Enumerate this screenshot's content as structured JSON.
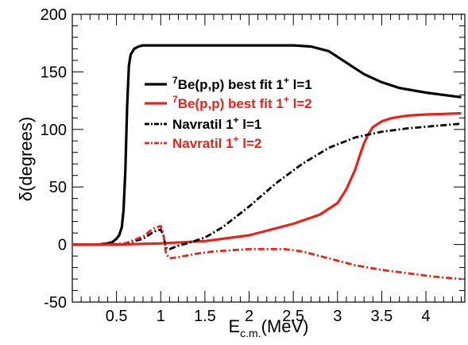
{
  "chart_data": {
    "type": "line",
    "xlabel_main": "E",
    "xlabel_sub": "c.m.",
    "xlabel_unit": "(MeV)",
    "ylabel": "δ(degrees)",
    "xlim": [
      0,
      4.44
    ],
    "ylim": [
      -50,
      200
    ],
    "xticks": [
      0.5,
      1,
      1.5,
      2,
      2.5,
      3,
      3.5,
      4
    ],
    "yticks": [
      -50,
      0,
      50,
      100,
      150,
      200
    ],
    "legend_position": "top-right",
    "series": [
      {
        "name": "7Be(p,p) best fit 1+ l=1",
        "legend": {
          "sup1": "7",
          "main": "Be(p,p) best fit 1",
          "sup2": "+",
          "tail": " l=1"
        },
        "color": "#000000",
        "style": "solid",
        "x": [
          0.0,
          0.3,
          0.4,
          0.45,
          0.5,
          0.53,
          0.56,
          0.58,
          0.6,
          0.62,
          0.64,
          0.66,
          0.7,
          0.75,
          0.8,
          0.9,
          1.0,
          1.5,
          2.0,
          2.5,
          2.7,
          2.9,
          3.1,
          3.3,
          3.5,
          3.7,
          4.0,
          4.2,
          4.4
        ],
        "y": [
          0,
          0,
          1,
          2,
          5,
          8,
          15,
          30,
          65,
          120,
          155,
          165,
          170,
          172,
          173,
          173,
          173,
          173,
          173,
          173,
          172,
          168,
          158,
          148,
          141,
          136,
          132,
          130,
          128
        ]
      },
      {
        "name": "7Be(p,p) best fit 1+ l=2",
        "legend": {
          "sup1": "7",
          "main": "Be(p,p) best fit 1",
          "sup2": "+",
          "tail": " l=2"
        },
        "color": "#e8231b",
        "style": "solid",
        "x": [
          0.0,
          0.5,
          1.0,
          1.5,
          2.0,
          2.5,
          2.8,
          3.0,
          3.1,
          3.2,
          3.25,
          3.3,
          3.35,
          3.4,
          3.5,
          3.6,
          3.7,
          3.8,
          4.0,
          4.2,
          4.4
        ],
        "y": [
          0,
          0,
          1,
          3,
          8,
          18,
          26,
          36,
          48,
          65,
          77,
          88,
          96,
          102,
          107,
          109.5,
          111,
          112,
          113,
          113.5,
          114
        ]
      },
      {
        "name": "Navratil 1+ l=1",
        "legend": {
          "sup1": "",
          "main": "Navratil 1",
          "sup2": "+",
          "tail": " l=1"
        },
        "color": "#000000",
        "style": "dashdot",
        "x": [
          0.0,
          0.4,
          0.6,
          0.8,
          0.9,
          0.95,
          1.0,
          1.03,
          1.06,
          1.1,
          1.2,
          1.3,
          1.5,
          1.7,
          2.0,
          2.3,
          2.6,
          2.9,
          3.2,
          3.5,
          3.8,
          4.1,
          4.4
        ],
        "y": [
          0,
          0,
          1,
          5,
          10,
          12,
          13,
          8,
          -3,
          -4,
          -1,
          1,
          6,
          15,
          33,
          53,
          70,
          84,
          93,
          98,
          101,
          103,
          105
        ]
      },
      {
        "name": "Navratil 1+ l=2",
        "legend": {
          "sup1": "",
          "main": "Navratil 1",
          "sup2": "+",
          "tail": " l=2"
        },
        "color": "#e8231b",
        "style": "dashdot",
        "x": [
          0.0,
          0.4,
          0.6,
          0.8,
          0.9,
          0.95,
          1.0,
          1.03,
          1.06,
          1.1,
          1.2,
          1.4,
          1.6,
          1.8,
          2.0,
          2.2,
          2.4,
          2.6,
          2.8,
          3.0,
          3.2,
          3.5,
          3.8,
          4.1,
          4.4
        ],
        "y": [
          0,
          0,
          1,
          7,
          13,
          15,
          16,
          10,
          -8,
          -12,
          -11,
          -8,
          -6,
          -5,
          -4,
          -4,
          -4,
          -6,
          -10,
          -14,
          -18,
          -22,
          -25,
          -28,
          -30
        ]
      }
    ]
  }
}
